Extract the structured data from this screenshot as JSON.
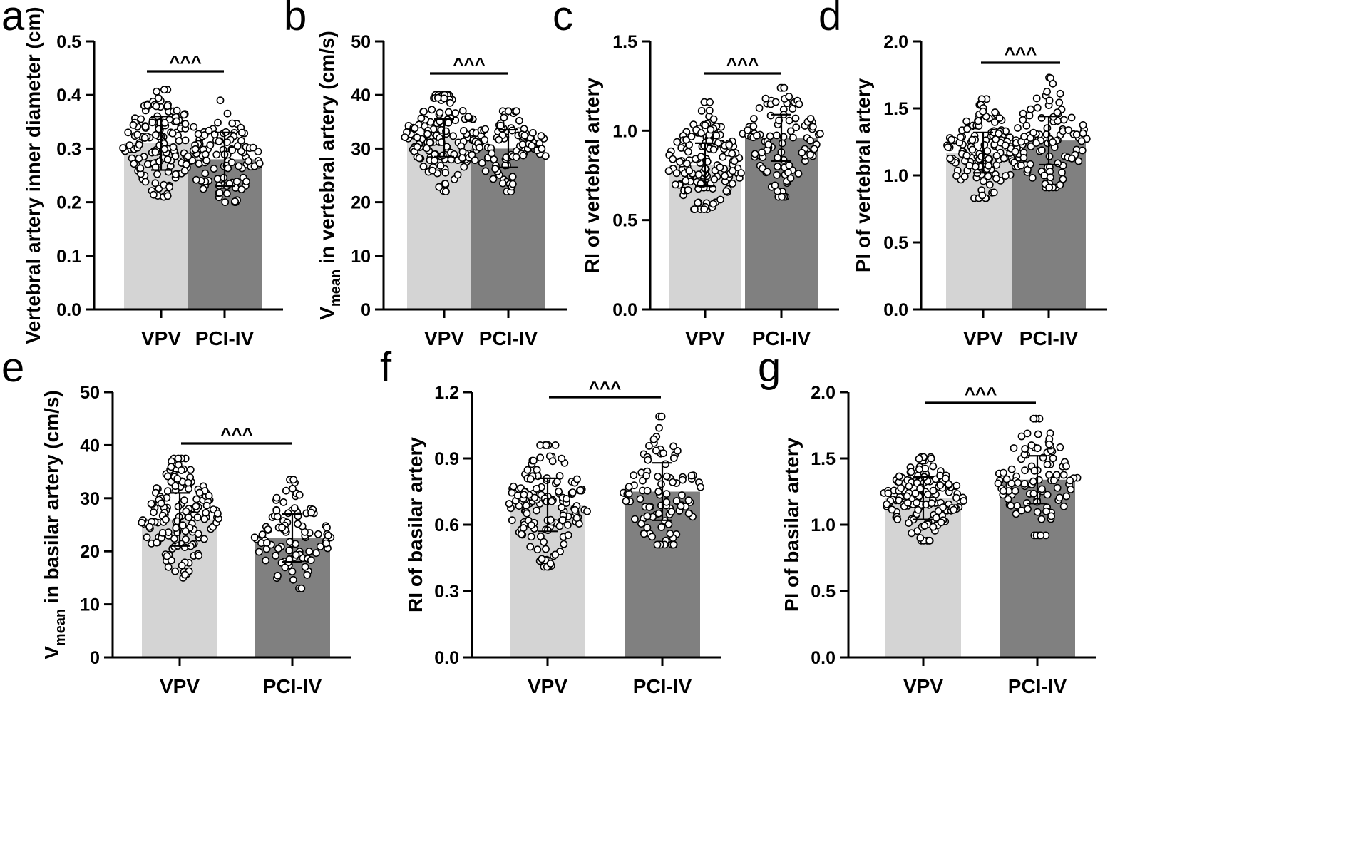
{
  "figure": {
    "background": "#ffffff",
    "bar_colors": [
      "#d4d4d4",
      "#808080"
    ]
  },
  "chart_data": [
    {
      "type": "bar",
      "panel": "a",
      "categories": [
        "VPV",
        "PCI-IV"
      ],
      "values": [
        0.31,
        0.28
      ],
      "sd": [
        0.05,
        0.05
      ],
      "ylabel": "Vertebral artery inner diameter (cm)",
      "ylabel_sub": "",
      "ylabel_rest": "",
      "ylim": [
        0,
        0.5
      ],
      "yticks": [
        "0.0",
        "0.1",
        "0.2",
        "0.3",
        "0.4",
        "0.5"
      ],
      "significance": "^^^",
      "points": {
        "n": [
          150,
          100
        ],
        "range": [
          [
            0.21,
            0.41
          ],
          [
            0.2,
            0.39
          ]
        ]
      }
    },
    {
      "type": "bar",
      "panel": "b",
      "categories": [
        "VPV",
        "PCI-IV"
      ],
      "values": [
        32.0,
        30.0
      ],
      "sd": [
        3.5,
        3.5
      ],
      "ylabel": "V",
      "ylabel_sub": "mean",
      "ylabel_rest": " in vertebral artery (cm/s)",
      "ylim": [
        0,
        50
      ],
      "yticks": [
        "0",
        "10",
        "20",
        "30",
        "40",
        "50"
      ],
      "significance": "^^^",
      "points": {
        "n": [
          150,
          100
        ],
        "range": [
          [
            22,
            40
          ],
          [
            22,
            37
          ]
        ]
      }
    },
    {
      "type": "bar",
      "panel": "c",
      "categories": [
        "VPV",
        "PCI-IV"
      ],
      "values": [
        0.81,
        0.96
      ],
      "sd": [
        0.12,
        0.13
      ],
      "ylabel": "RI of vertebral artery",
      "ylabel_sub": "",
      "ylabel_rest": "",
      "ylim": [
        0,
        1.5
      ],
      "yticks": [
        "0.0",
        "0.5",
        "1.0",
        "1.5"
      ],
      "significance": "^^^",
      "points": {
        "n": [
          150,
          100
        ],
        "range": [
          [
            0.56,
            1.16
          ],
          [
            0.63,
            1.24
          ]
        ]
      }
    },
    {
      "type": "bar",
      "panel": "d",
      "categories": [
        "VPV",
        "PCI-IV"
      ],
      "values": [
        1.17,
        1.26
      ],
      "sd": [
        0.15,
        0.18
      ],
      "ylabel": "PI of vertebral artery",
      "ylabel_sub": "",
      "ylabel_rest": "",
      "ylim": [
        0,
        2.0
      ],
      "yticks": [
        "0.0",
        "0.5",
        "1.0",
        "1.5",
        "2.0"
      ],
      "significance": "^^^",
      "points": {
        "n": [
          150,
          100
        ],
        "range": [
          [
            0.83,
            1.57
          ],
          [
            0.91,
            1.73
          ]
        ]
      }
    },
    {
      "type": "bar",
      "panel": "e",
      "categories": [
        "VPV",
        "PCI-IV"
      ],
      "values": [
        26.0,
        22.5
      ],
      "sd": [
        5.0,
        4.5
      ],
      "ylabel": "V",
      "ylabel_sub": "mean",
      "ylabel_rest": " in basilar artery (cm/s)",
      "ylim": [
        0,
        50
      ],
      "yticks": [
        "0",
        "10",
        "20",
        "30",
        "40",
        "50"
      ],
      "significance": "^^^",
      "points": {
        "n": [
          150,
          100
        ],
        "range": [
          [
            15,
            37.5
          ],
          [
            13,
            33.5
          ]
        ]
      }
    },
    {
      "type": "bar",
      "panel": "f",
      "categories": [
        "VPV",
        "PCI-IV"
      ],
      "values": [
        0.69,
        0.75
      ],
      "sd": [
        0.12,
        0.13
      ],
      "ylabel": "RI of basilar artery",
      "ylabel_sub": "",
      "ylabel_rest": "",
      "ylim": [
        0,
        1.2
      ],
      "yticks": [
        "0.0",
        "0.3",
        "0.6",
        "0.9",
        "1.2"
      ],
      "significance": "^^^",
      "points": {
        "n": [
          150,
          100
        ],
        "range": [
          [
            0.41,
            0.96
          ],
          [
            0.51,
            1.09
          ]
        ]
      }
    },
    {
      "type": "bar",
      "panel": "g",
      "categories": [
        "VPV",
        "PCI-IV"
      ],
      "values": [
        1.2,
        1.34
      ],
      "sd": [
        0.16,
        0.18
      ],
      "ylabel": "PI of basilar artery",
      "ylabel_sub": "",
      "ylabel_rest": "",
      "ylim": [
        0,
        2.0
      ],
      "yticks": [
        "0.0",
        "0.5",
        "1.0",
        "1.5",
        "2.0"
      ],
      "significance": "^^^",
      "points": {
        "n": [
          150,
          100
        ],
        "range": [
          [
            0.88,
            1.51
          ],
          [
            0.92,
            1.8
          ]
        ]
      }
    }
  ]
}
